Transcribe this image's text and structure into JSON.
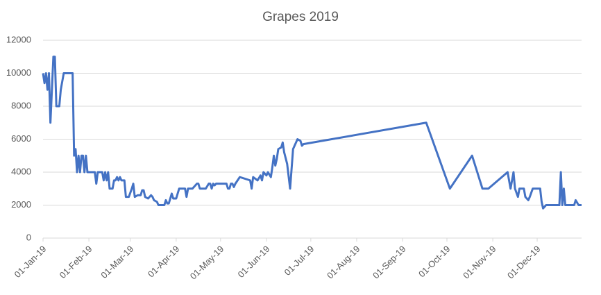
{
  "chart_data": {
    "type": "line",
    "title": "Grapes 2019",
    "x": [
      "2019-01-01",
      "2019-01-02",
      "2019-01-03",
      "2019-01-04",
      "2019-01-05",
      "2019-01-06",
      "2019-01-08",
      "2019-01-09",
      "2019-01-10",
      "2019-01-12",
      "2019-01-13",
      "2019-01-15",
      "2019-01-21",
      "2019-01-22",
      "2019-01-23",
      "2019-01-24",
      "2019-01-25",
      "2019-01-26",
      "2019-01-27",
      "2019-01-28",
      "2019-01-29",
      "2019-01-30",
      "2019-01-31",
      "2019-02-01",
      "2019-02-05",
      "2019-02-06",
      "2019-02-07",
      "2019-02-10",
      "2019-02-11",
      "2019-02-12",
      "2019-02-13",
      "2019-02-14",
      "2019-02-15",
      "2019-02-17",
      "2019-02-18",
      "2019-02-19",
      "2019-02-20",
      "2019-02-21",
      "2019-02-22",
      "2019-02-23",
      "2019-02-25",
      "2019-02-26",
      "2019-02-28",
      "2019-03-02",
      "2019-03-03",
      "2019-03-04",
      "2019-03-06",
      "2019-03-08",
      "2019-03-09",
      "2019-03-10",
      "2019-03-11",
      "2019-03-13",
      "2019-03-15",
      "2019-03-16",
      "2019-03-17",
      "2019-03-19",
      "2019-03-20",
      "2019-03-24",
      "2019-03-25",
      "2019-03-26",
      "2019-03-27",
      "2019-03-29",
      "2019-03-30",
      "2019-04-01",
      "2019-04-03",
      "2019-04-07",
      "2019-04-08",
      "2019-04-09",
      "2019-04-12",
      "2019-04-15",
      "2019-04-16",
      "2019-04-17",
      "2019-04-21",
      "2019-04-23",
      "2019-04-24",
      "2019-04-25",
      "2019-04-26",
      "2019-04-27",
      "2019-04-28",
      "2019-05-03",
      "2019-05-05",
      "2019-05-06",
      "2019-05-07",
      "2019-05-08",
      "2019-05-09",
      "2019-05-10",
      "2019-05-11",
      "2019-05-14",
      "2019-05-21",
      "2019-05-22",
      "2019-05-23",
      "2019-05-26",
      "2019-05-28",
      "2019-05-29",
      "2019-05-30",
      "2019-06-01",
      "2019-06-02",
      "2019-06-04",
      "2019-06-05",
      "2019-06-06",
      "2019-06-07",
      "2019-06-08",
      "2019-06-09",
      "2019-06-11",
      "2019-06-12",
      "2019-06-13",
      "2019-06-15",
      "2019-06-17",
      "2019-06-19",
      "2019-06-22",
      "2019-06-24",
      "2019-06-25",
      "2019-06-26",
      "2019-09-17",
      "2019-10-03",
      "2019-10-18",
      "2019-10-25",
      "2019-10-29",
      "2019-11-11",
      "2019-11-13",
      "2019-11-15",
      "2019-11-16",
      "2019-11-18",
      "2019-11-19",
      "2019-11-22",
      "2019-11-23",
      "2019-11-25",
      "2019-11-26",
      "2019-11-28",
      "2019-12-03",
      "2019-12-04",
      "2019-12-05",
      "2019-12-07",
      "2019-12-16",
      "2019-12-17",
      "2019-12-18",
      "2019-12-19",
      "2019-12-20",
      "2019-12-26",
      "2019-12-27",
      "2019-12-29",
      "2019-12-31"
    ],
    "series": [
      {
        "name": "Grapes 2019",
        "color": "#4472c4",
        "values": [
          10000,
          9400,
          10000,
          9000,
          10000,
          7000,
          11000,
          11000,
          8000,
          8000,
          9000,
          10000,
          10000,
          5000,
          5400,
          4000,
          5000,
          4000,
          5000,
          5000,
          4000,
          5000,
          4000,
          4000,
          4000,
          3300,
          4000,
          4000,
          3500,
          4000,
          3500,
          4000,
          3000,
          3000,
          3500,
          3500,
          3700,
          3500,
          3700,
          3500,
          3500,
          2500,
          2500,
          3000,
          3300,
          2500,
          2600,
          2600,
          2900,
          2900,
          2500,
          2400,
          2600,
          2500,
          2300,
          2200,
          2000,
          2000,
          2300,
          2100,
          2100,
          2700,
          2400,
          2400,
          3000,
          3000,
          2500,
          3000,
          3000,
          3300,
          3300,
          3000,
          3000,
          3300,
          3300,
          3000,
          3300,
          3200,
          3300,
          3300,
          3300,
          3000,
          3000,
          3300,
          3300,
          3100,
          3300,
          3700,
          3500,
          3000,
          3700,
          3500,
          3800,
          3500,
          4000,
          3800,
          4000,
          3700,
          4300,
          5000,
          4400,
          4800,
          5400,
          5500,
          5800,
          5200,
          4500,
          3000,
          5400,
          6000,
          5900,
          5600,
          5700,
          7000,
          3000,
          5000,
          3000,
          3000,
          4000,
          3000,
          4000,
          3000,
          2500,
          3000,
          3000,
          2500,
          2300,
          2500,
          3000,
          3000,
          2200,
          1800,
          2000,
          2000,
          4000,
          2000,
          3000,
          2000,
          2000,
          2300,
          2000,
          2000
        ]
      }
    ],
    "xlim": [
      "2019-01-01",
      "2019-12-31"
    ],
    "xticks": [
      {
        "value": "2019-01-01",
        "label": "01-Jan-19"
      },
      {
        "value": "2019-02-01",
        "label": "01-Feb-19"
      },
      {
        "value": "2019-03-01",
        "label": "01-Mar-19"
      },
      {
        "value": "2019-04-01",
        "label": "01-Apr-19"
      },
      {
        "value": "2019-05-01",
        "label": "01-May-19"
      },
      {
        "value": "2019-06-01",
        "label": "01-Jun-19"
      },
      {
        "value": "2019-07-01",
        "label": "01-Jul-19"
      },
      {
        "value": "2019-08-01",
        "label": "01-Aug-19"
      },
      {
        "value": "2019-09-01",
        "label": "01-Sep-19"
      },
      {
        "value": "2019-10-01",
        "label": "01-Oct-19"
      },
      {
        "value": "2019-11-01",
        "label": "01-Nov-19"
      },
      {
        "value": "2019-12-01",
        "label": "01-Dec-19"
      }
    ],
    "ylim": [
      0,
      12000
    ],
    "yticks": [
      0,
      2000,
      4000,
      6000,
      8000,
      10000,
      12000
    ],
    "grid": true
  }
}
